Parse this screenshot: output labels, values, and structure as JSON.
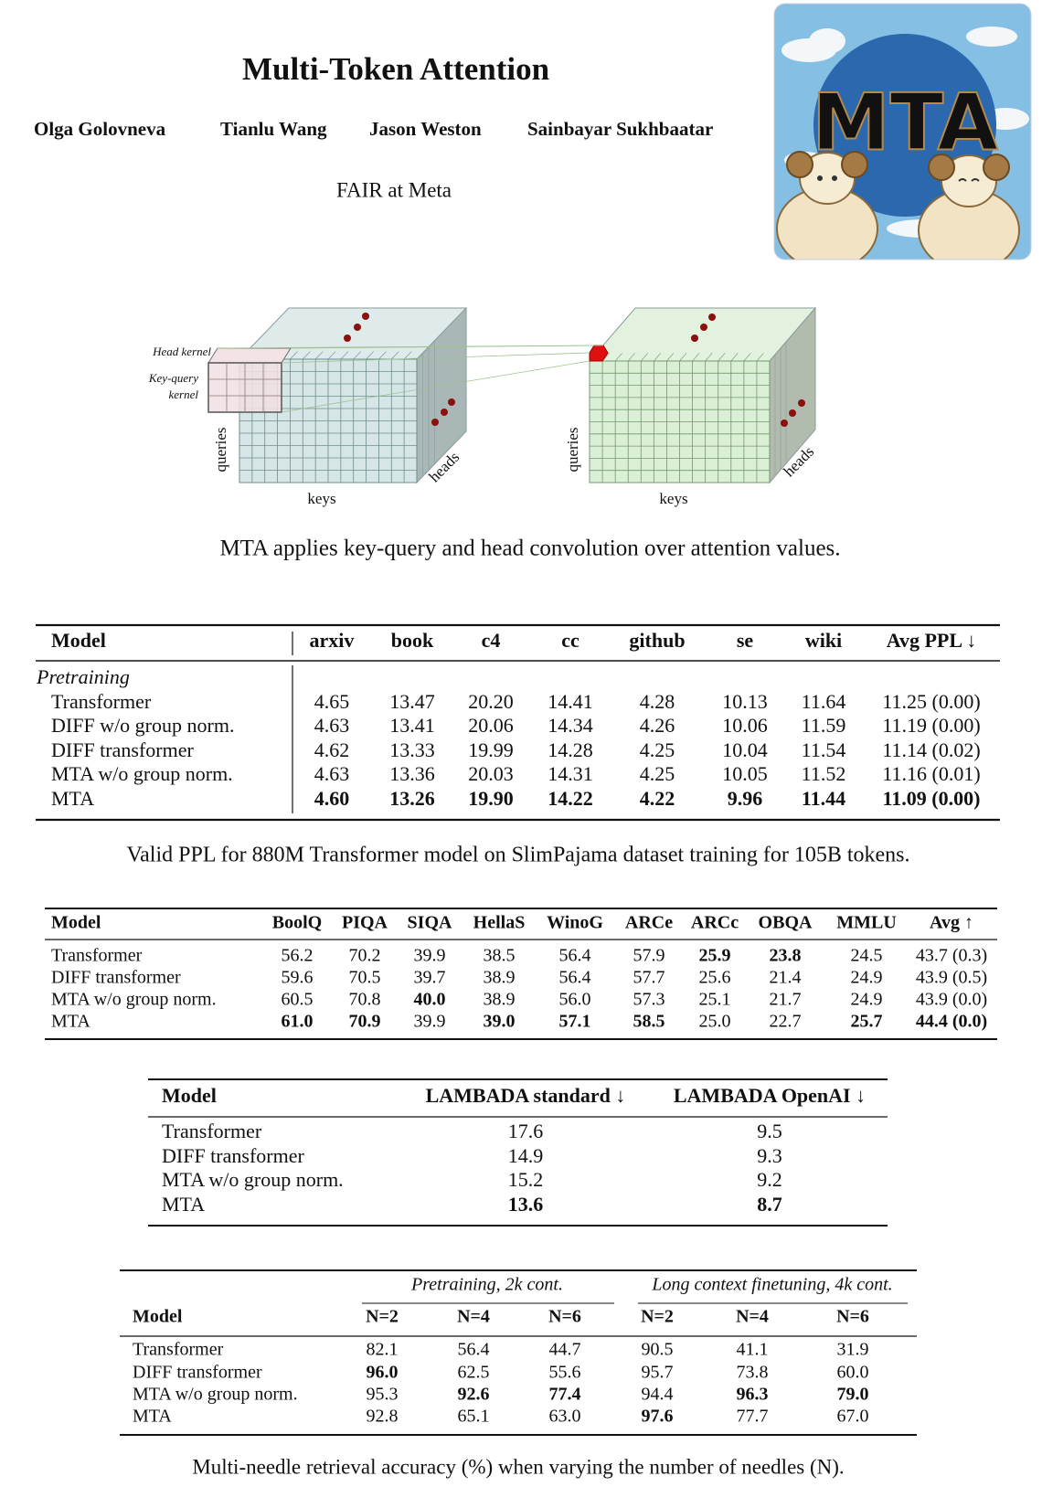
{
  "header": {
    "title": "Multi-Token Attention",
    "authors": [
      "Olga Golovneva",
      "Tianlu Wang",
      "Jason Weston",
      "Sainbayar Sukhbaatar"
    ],
    "affiliation": "FAIR at Meta"
  },
  "logo": {
    "text": "MTA"
  },
  "figure": {
    "head_kernel": "Head kernel",
    "kq_kernel": [
      "Key-query",
      "kernel"
    ],
    "left_axes": {
      "queries": "queries",
      "keys": "keys",
      "heads": "heads"
    },
    "right_axes": {
      "queries": "queries",
      "keys": "keys",
      "heads": "heads"
    },
    "caption": "MTA applies key-query and head convolution over attention values."
  },
  "tables": [
    {
      "columns": [
        "Model",
        "arxiv",
        "book",
        "c4",
        "cc",
        "github",
        "se",
        "wiki",
        "Avg PPL ↓"
      ],
      "section": "Pretraining",
      "rows": [
        {
          "cells": [
            "Transformer",
            "4.65",
            "13.47",
            "20.20",
            "14.41",
            "4.28",
            "10.13",
            "11.64",
            "11.25 (0.00)"
          ],
          "bold": []
        },
        {
          "cells": [
            "DIFF w/o group norm.",
            "4.63",
            "13.41",
            "20.06",
            "14.34",
            "4.26",
            "10.06",
            "11.59",
            "11.19 (0.00)"
          ],
          "bold": []
        },
        {
          "cells": [
            "DIFF transformer",
            "4.62",
            "13.33",
            "19.99",
            "14.28",
            "4.25",
            "10.04",
            "11.54",
            "11.14 (0.02)"
          ],
          "bold": []
        },
        {
          "cells": [
            "MTA w/o group norm.",
            "4.63",
            "13.36",
            "20.03",
            "14.31",
            "4.25",
            "10.05",
            "11.52",
            "11.16 (0.01)"
          ],
          "bold": []
        },
        {
          "cells": [
            "MTA",
            "4.60",
            "13.26",
            "19.90",
            "14.22",
            "4.22",
            "9.96",
            "11.44",
            "11.09 (0.00)"
          ],
          "bold": [
            1,
            2,
            3,
            4,
            5,
            6,
            7,
            8
          ]
        }
      ],
      "caption": "Valid PPL for 880M Transformer model on SlimPajama dataset training for 105B tokens."
    },
    {
      "columns": [
        "Model",
        "BoolQ",
        "PIQA",
        "SIQA",
        "HellaS",
        "WinoG",
        "ARCe",
        "ARCc",
        "OBQA",
        "MMLU",
        "Avg ↑"
      ],
      "rows": [
        {
          "cells": [
            "Transformer",
            "56.2",
            "70.2",
            "39.9",
            "38.5",
            "56.4",
            "57.9",
            "25.9",
            "23.8",
            "24.5",
            "43.7 (0.3)"
          ],
          "bold": [
            7,
            8
          ]
        },
        {
          "cells": [
            "DIFF transformer",
            "59.6",
            "70.5",
            "39.7",
            "38.9",
            "56.4",
            "57.7",
            "25.6",
            "21.4",
            "24.9",
            "43.9 (0.5)"
          ],
          "bold": []
        },
        {
          "cells": [
            "MTA w/o group norm.",
            "60.5",
            "70.8",
            "40.0",
            "38.9",
            "56.0",
            "57.3",
            "25.1",
            "21.7",
            "24.9",
            "43.9 (0.0)"
          ],
          "bold": [
            3
          ]
        },
        {
          "cells": [
            "MTA",
            "61.0",
            "70.9",
            "39.9",
            "39.0",
            "57.1",
            "58.5",
            "25.0",
            "22.7",
            "25.7",
            "44.4 (0.0)"
          ],
          "bold": [
            1,
            2,
            4,
            5,
            6,
            9,
            10
          ]
        }
      ]
    },
    {
      "columns": [
        "Model",
        "LAMBADA standard ↓",
        "LAMBADA OpenAI ↓"
      ],
      "rows": [
        {
          "cells": [
            "Transformer",
            "17.6",
            "9.5"
          ],
          "bold": []
        },
        {
          "cells": [
            "DIFF transformer",
            "14.9",
            "9.3"
          ],
          "bold": []
        },
        {
          "cells": [
            "MTA w/o group norm.",
            "15.2",
            "9.2"
          ],
          "bold": []
        },
        {
          "cells": [
            "MTA",
            "13.6",
            "8.7"
          ],
          "bold": [
            1,
            2
          ]
        }
      ]
    },
    {
      "groups": [
        "Pretraining, 2k cont.",
        "Long context finetuning, 4k cont."
      ],
      "columns": [
        "Model",
        "N=2",
        "N=4",
        "N=6",
        "N=2",
        "N=4",
        "N=6"
      ],
      "rows": [
        {
          "cells": [
            "Transformer",
            "82.1",
            "56.4",
            "44.7",
            "90.5",
            "41.1",
            "31.9"
          ],
          "bold": []
        },
        {
          "cells": [
            "DIFF transformer",
            "96.0",
            "62.5",
            "55.6",
            "95.7",
            "73.8",
            "60.0"
          ],
          "bold": [
            1
          ]
        },
        {
          "cells": [
            "MTA w/o group norm.",
            "95.3",
            "92.6",
            "77.4",
            "94.4",
            "96.3",
            "79.0"
          ],
          "bold": [
            2,
            3,
            5,
            6
          ]
        },
        {
          "cells": [
            "MTA",
            "92.8",
            "65.1",
            "63.0",
            "97.6",
            "77.7",
            "67.0"
          ],
          "bold": [
            4
          ]
        }
      ],
      "caption": "Multi-needle retrieval accuracy (%) when varying the number of needles (N)."
    }
  ]
}
